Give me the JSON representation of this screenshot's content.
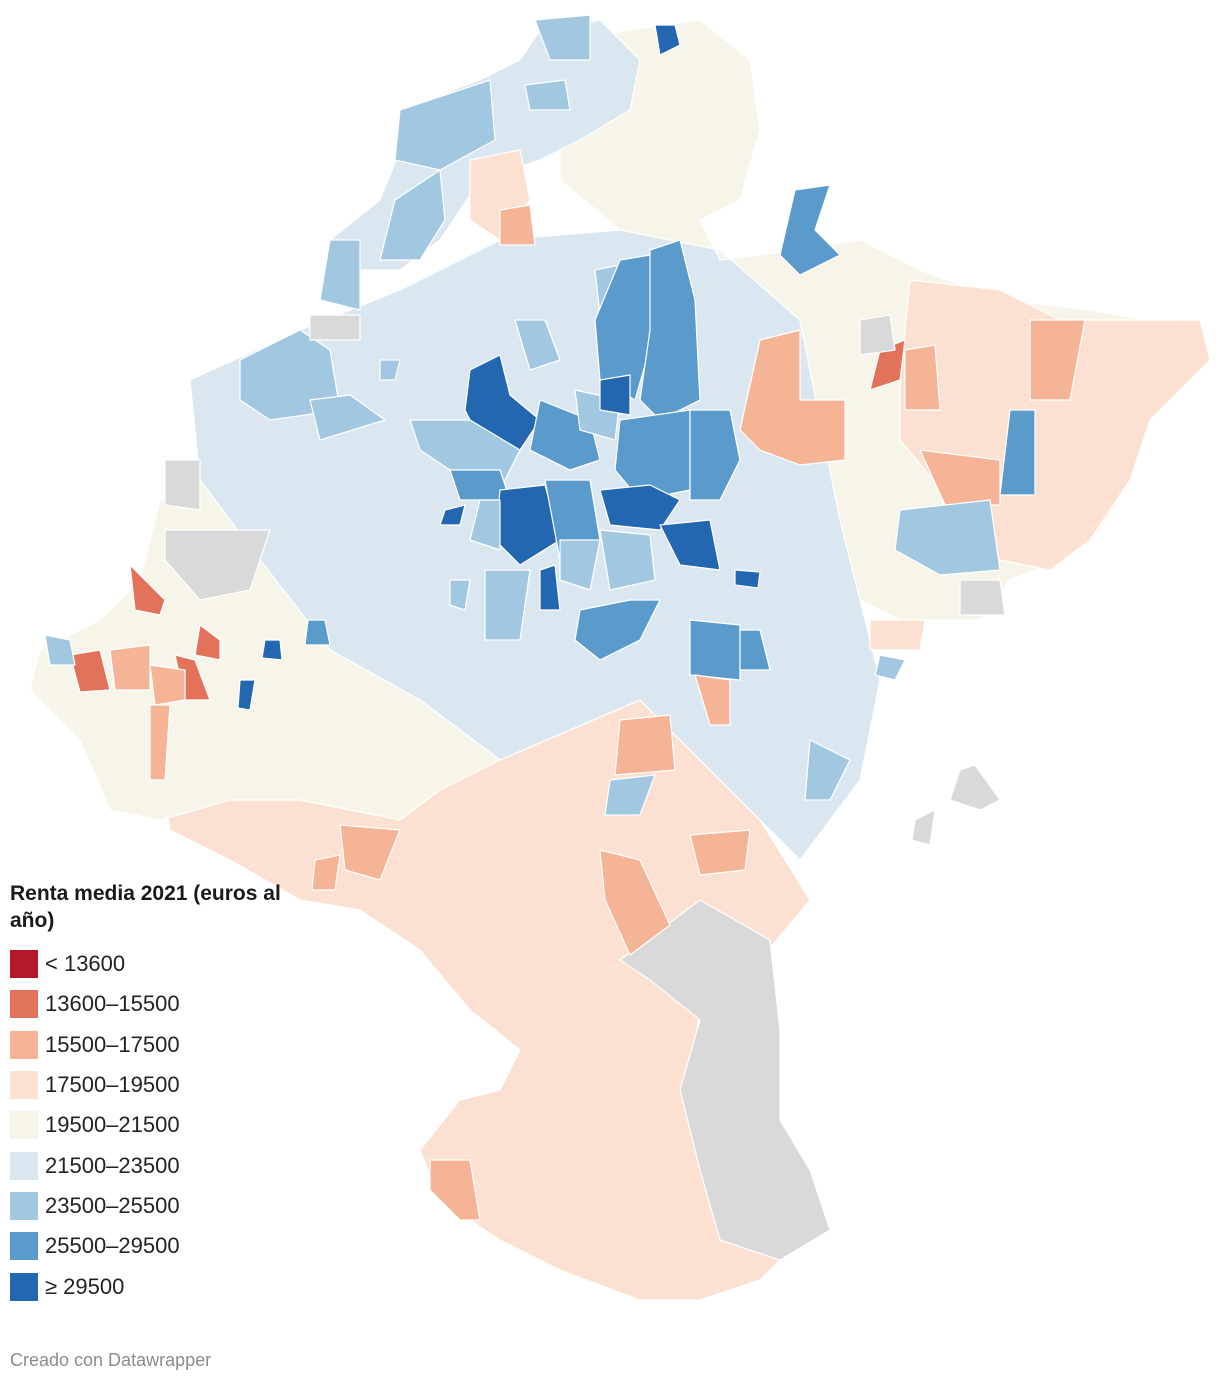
{
  "legend": {
    "title": "Renta media 2021 (euros al año)",
    "classes": [
      {
        "label": "< 13600",
        "color": "#b5182b"
      },
      {
        "label": "13600–15500",
        "color": "#e2735a"
      },
      {
        "label": "15500–17500",
        "color": "#f6b497"
      },
      {
        "label": "17500–19500",
        "color": "#fce0d2"
      },
      {
        "label": "19500–21500",
        "color": "#f7f5ea"
      },
      {
        "label": "21500–23500",
        "color": "#dbe7f0"
      },
      {
        "label": "23500–25500",
        "color": "#a2c7e0"
      },
      {
        "label": "25500–29500",
        "color": "#5b9bcc"
      },
      {
        "label": "≥ 29500",
        "color": "#2467b1"
      }
    ],
    "no_data_color": "#d9d9d9"
  },
  "credit": "Creado con Datawrapper"
}
